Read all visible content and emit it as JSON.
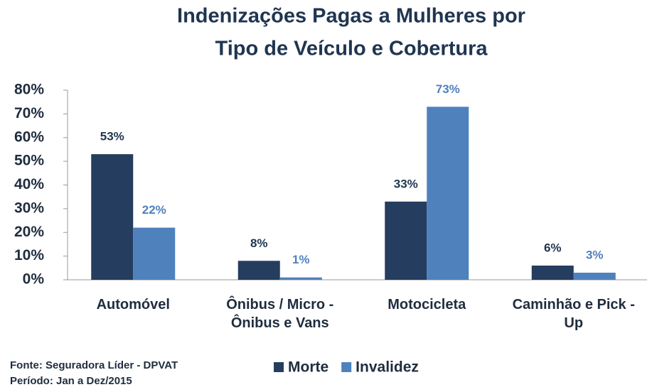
{
  "chart_data": {
    "type": "bar",
    "title": [
      "Indenizações Pagas a Mulheres por",
      "Tipo de Veículo e Cobertura"
    ],
    "categories": [
      "Automóvel",
      "Ônibus / Micro - Ônibus e Vans",
      "Motocicleta",
      "Caminhão e Pick - Up"
    ],
    "series": [
      {
        "name": "Morte",
        "color": "#253d5e",
        "values": [
          53,
          8,
          33,
          6
        ],
        "value_labels": [
          "53%",
          "8%",
          "33%",
          "6%"
        ]
      },
      {
        "name": "Invalidez",
        "color": "#4f81bd",
        "values": [
          22,
          1,
          73,
          3
        ],
        "value_labels": [
          "22%",
          "1%",
          "73%",
          "3%"
        ]
      }
    ],
    "ylim": [
      0,
      80
    ],
    "yticks": [
      {
        "value": 0,
        "label": "0%"
      },
      {
        "value": 10,
        "label": "10%"
      },
      {
        "value": 20,
        "label": "20%"
      },
      {
        "value": 30,
        "label": "30%"
      },
      {
        "value": 40,
        "label": "40%"
      },
      {
        "value": 50,
        "label": "50%"
      },
      {
        "value": 60,
        "label": "60%"
      },
      {
        "value": 70,
        "label": "70%"
      },
      {
        "value": 80,
        "label": "80%"
      }
    ],
    "annotations": [
      "Fonte: Seguradora Líder - DPVAT",
      "Período: Jan a Dez/2015"
    ],
    "grid": false
  }
}
